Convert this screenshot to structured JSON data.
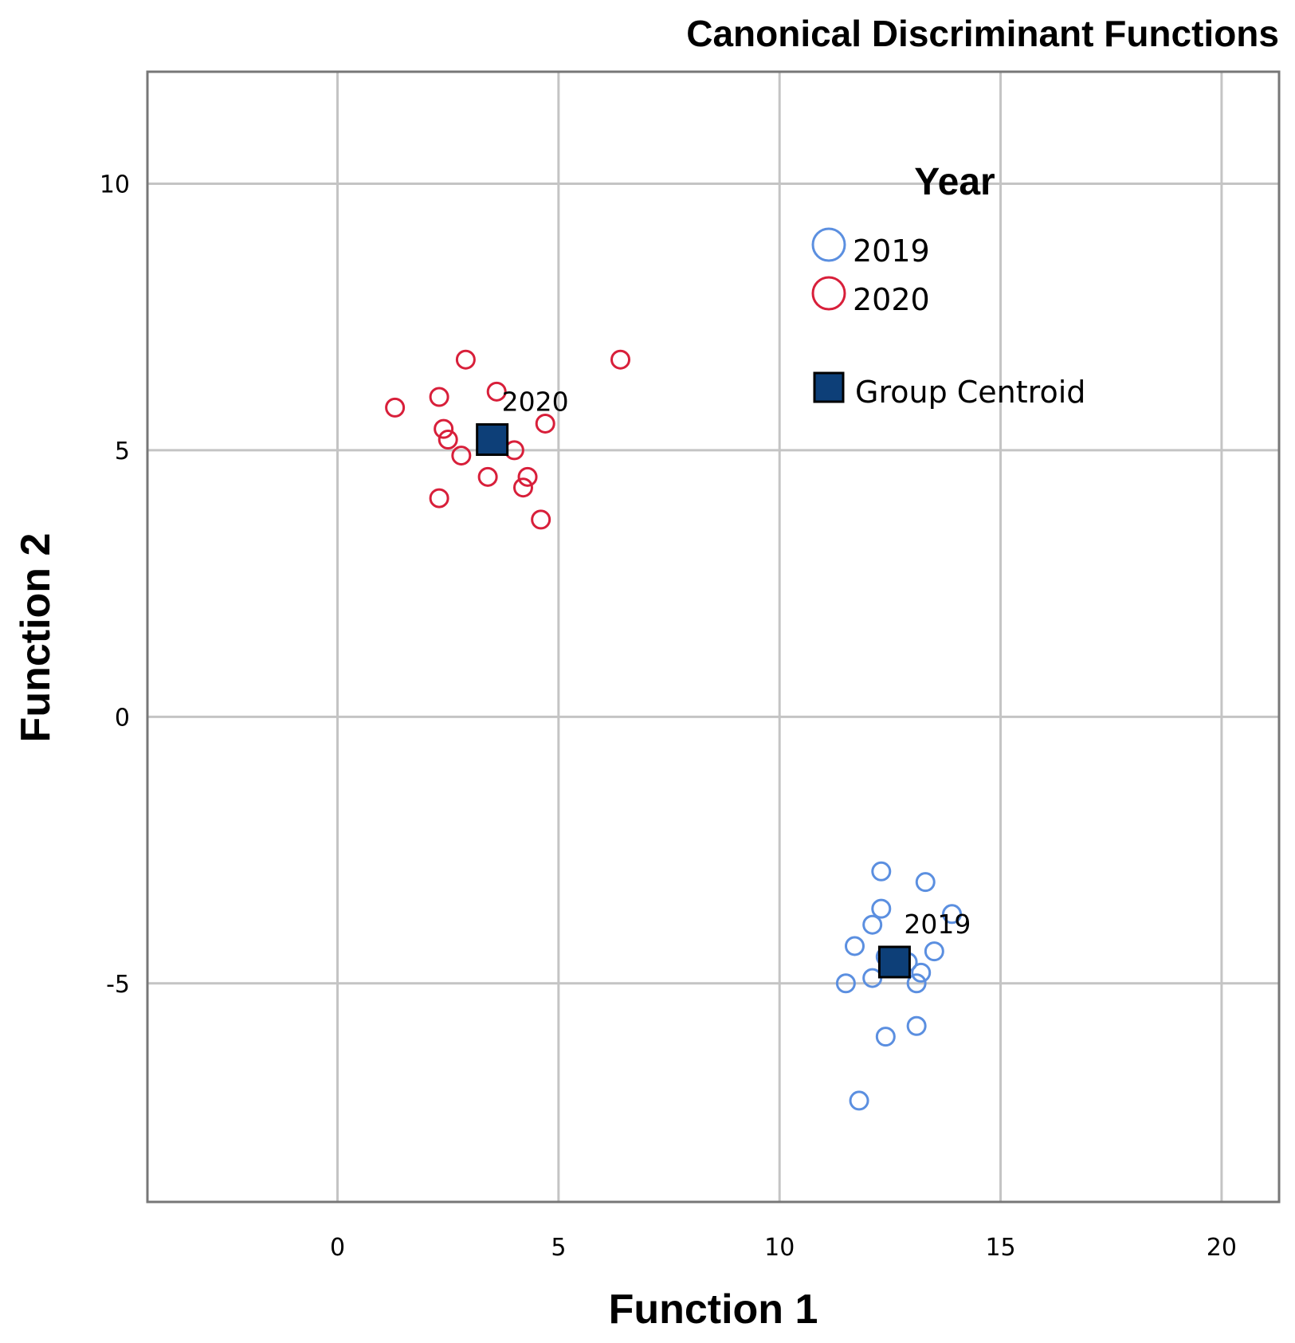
{
  "chart_data": {
    "type": "scatter",
    "title": "Canonical Discriminant Functions",
    "xlabel": "Function 1",
    "ylabel": "Function 2",
    "xlim": [
      -4.3,
      21.3
    ],
    "ylim": [
      -9.1,
      12.1
    ],
    "xticks": [
      0,
      5,
      10,
      15,
      20
    ],
    "yticks": [
      10,
      5,
      0,
      -5
    ],
    "xtick_labels": [
      "0",
      "5",
      "10",
      "15",
      "20"
    ],
    "ytick_labels": [
      "10",
      "5",
      "0",
      "-5"
    ],
    "grid": true,
    "legend": {
      "title": "Year",
      "placement": "top-right",
      "entries": [
        {
          "label": "2019",
          "marker": "open-circle",
          "color": "#5b8fe0"
        },
        {
          "label": "2020",
          "marker": "open-circle",
          "color": "#d81f3a"
        },
        {
          "label": "Group Centroid",
          "marker": "filled-square",
          "color": "#0d3f78"
        }
      ]
    },
    "series": [
      {
        "name": "2020",
        "color": "#d81f3a",
        "points": [
          [
            2.9,
            6.7
          ],
          [
            6.4,
            6.7
          ],
          [
            3.6,
            6.1
          ],
          [
            1.3,
            5.8
          ],
          [
            2.3,
            6.0
          ],
          [
            2.4,
            5.4
          ],
          [
            4.7,
            5.5
          ],
          [
            2.5,
            5.2
          ],
          [
            4.0,
            5.0
          ],
          [
            2.8,
            4.9
          ],
          [
            3.4,
            4.5
          ],
          [
            4.3,
            4.5
          ],
          [
            4.2,
            4.3
          ],
          [
            2.3,
            4.1
          ],
          [
            4.6,
            3.7
          ]
        ]
      },
      {
        "name": "2019",
        "color": "#5b8fe0",
        "points": [
          [
            12.3,
            -2.9
          ],
          [
            13.3,
            -3.1
          ],
          [
            12.3,
            -3.6
          ],
          [
            13.9,
            -3.7
          ],
          [
            12.1,
            -3.9
          ],
          [
            11.7,
            -4.3
          ],
          [
            13.5,
            -4.4
          ],
          [
            12.4,
            -4.5
          ],
          [
            12.9,
            -4.6
          ],
          [
            13.2,
            -4.8
          ],
          [
            12.1,
            -4.9
          ],
          [
            11.5,
            -5.0
          ],
          [
            13.1,
            -5.0
          ],
          [
            13.1,
            -5.8
          ],
          [
            12.4,
            -6.0
          ],
          [
            11.8,
            -7.2
          ]
        ]
      }
    ],
    "centroids": [
      {
        "label": "2020",
        "x": 3.5,
        "y": 5.2,
        "color": "#0d3f78"
      },
      {
        "label": "2019",
        "x": 12.6,
        "y": -4.6,
        "color": "#0d3f78"
      }
    ]
  }
}
